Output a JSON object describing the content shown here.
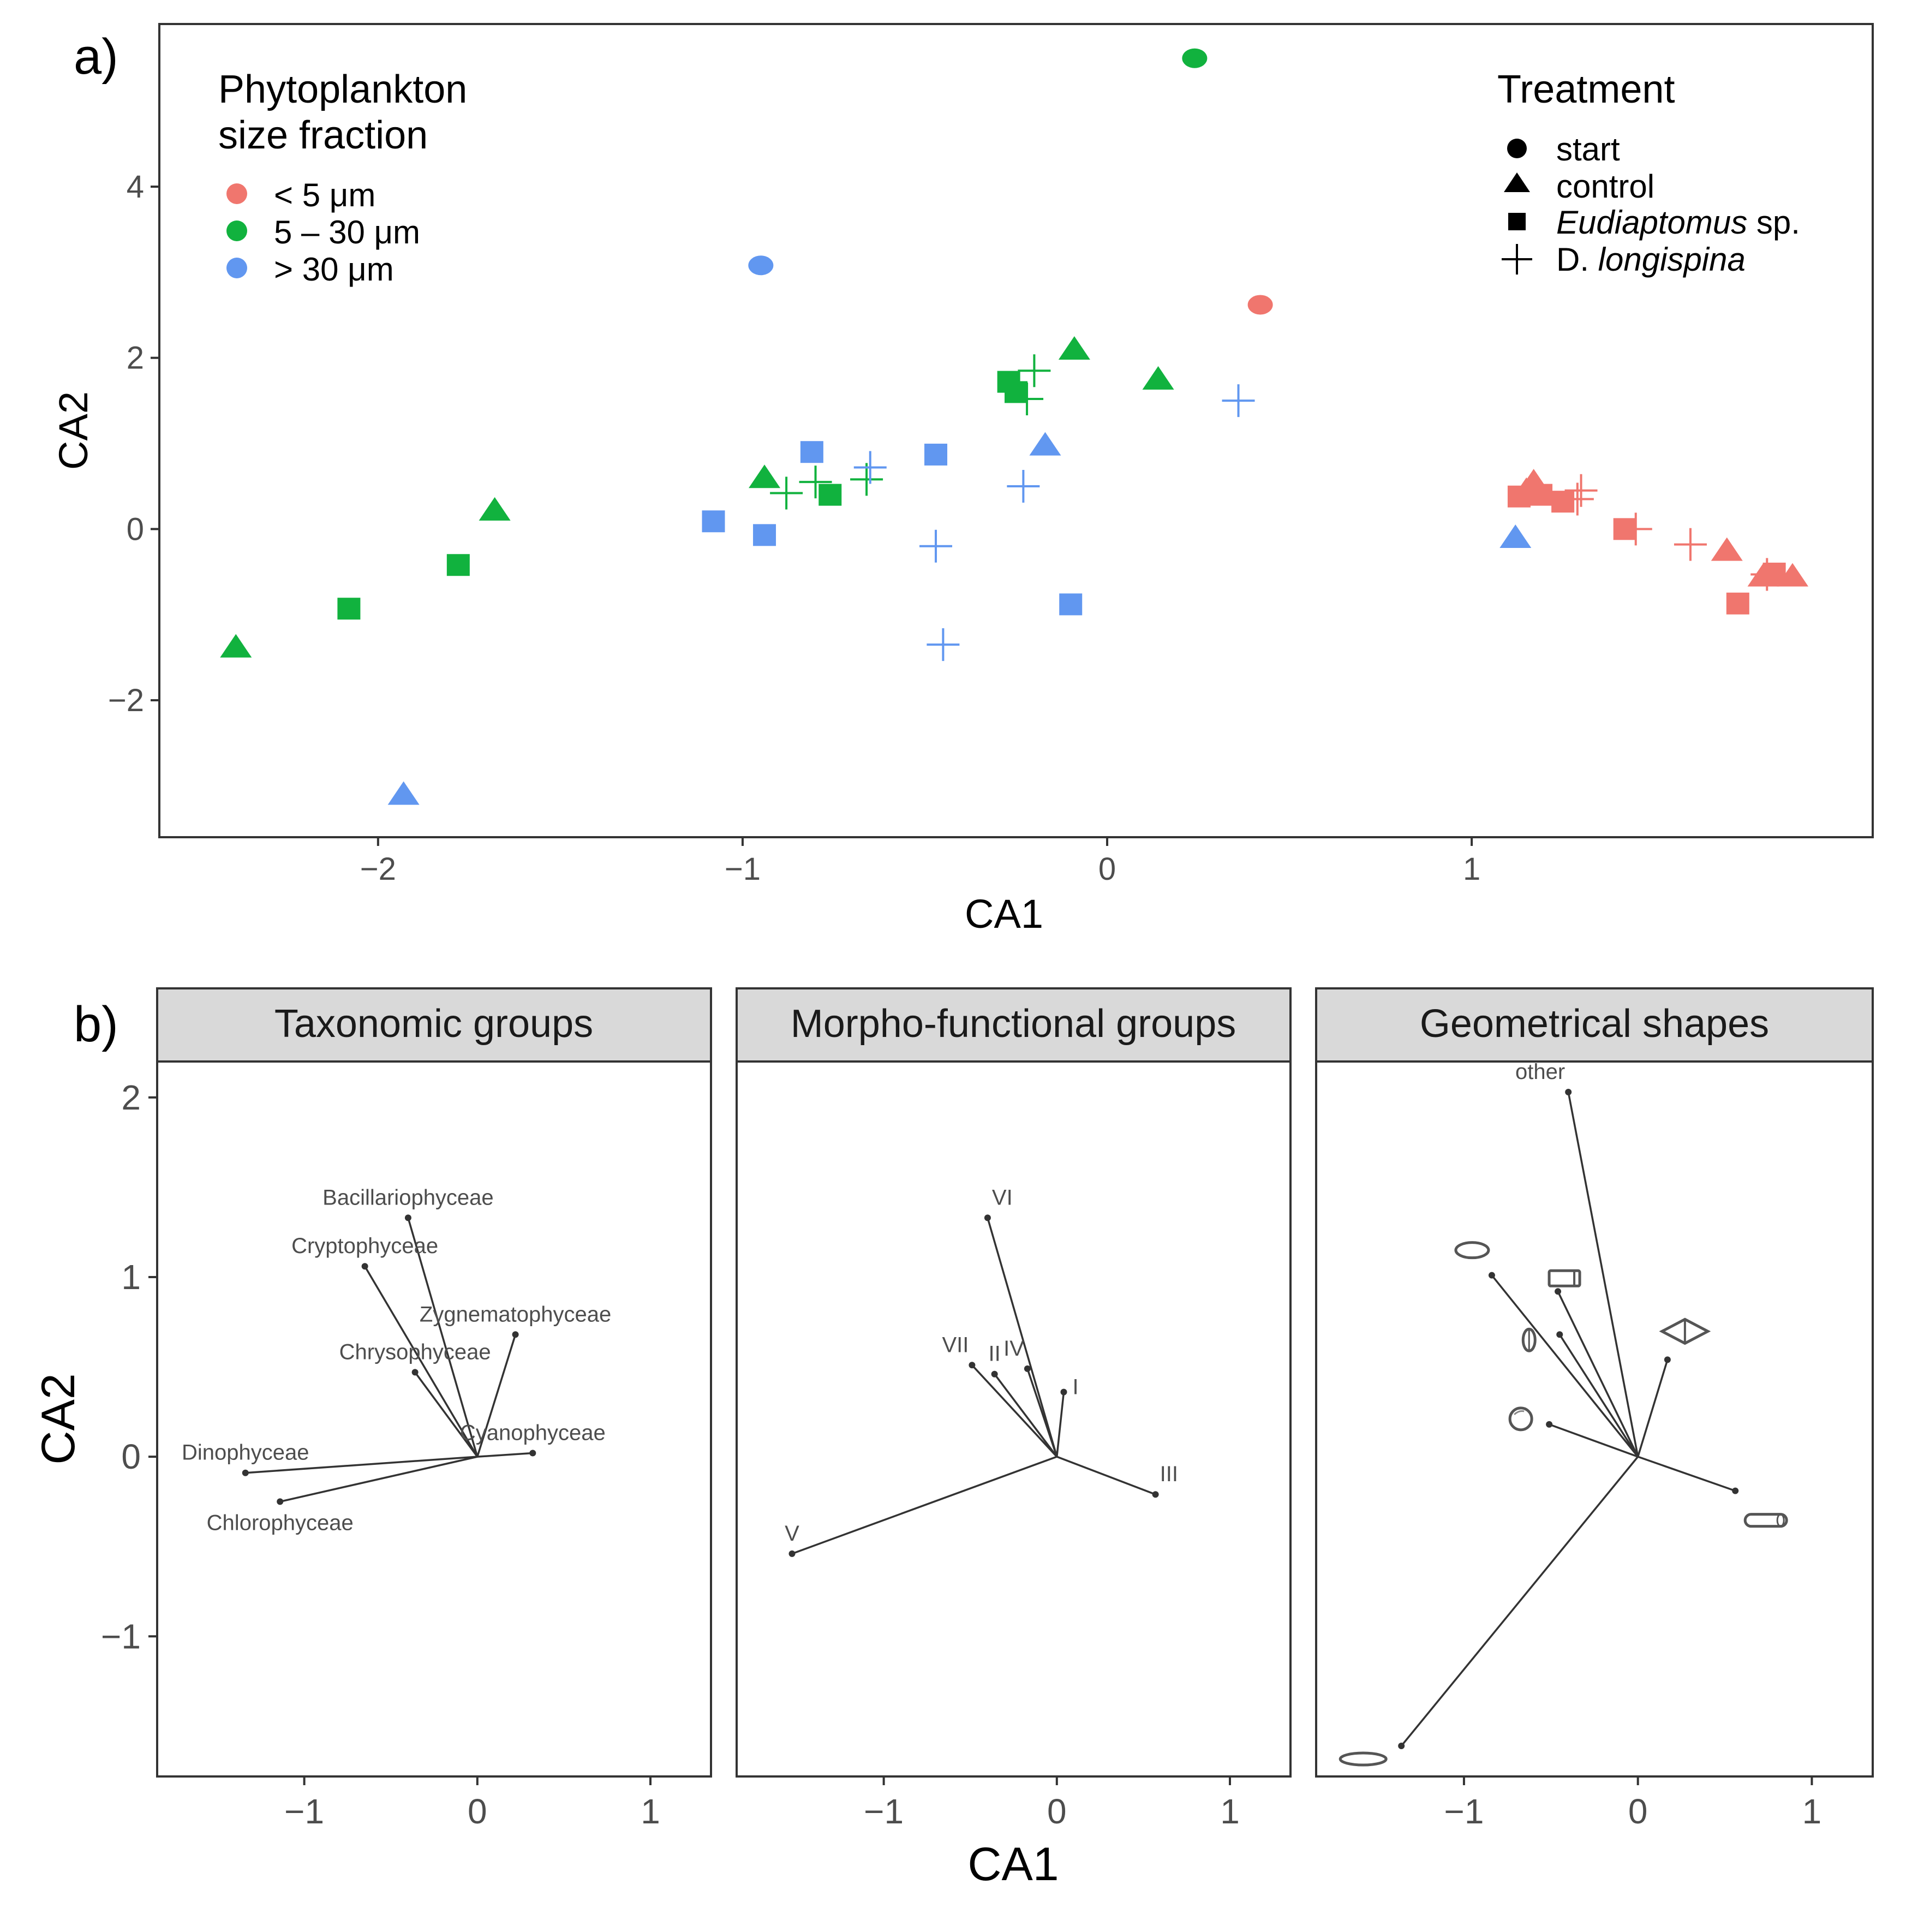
{
  "panel_a": {
    "tag": "a)",
    "chart_data": {
      "type": "scatter",
      "xlabel": "CA1",
      "ylabel": "CA2",
      "xlim": [
        -2.6,
        2.1
      ],
      "ylim": [
        -3.6,
        5.9
      ],
      "xticks": [
        {
          "v": -2,
          "label": "−2"
        },
        {
          "v": -1,
          "label": "−1"
        },
        {
          "v": 0,
          "label": "0"
        },
        {
          "v": 1,
          "label": "1"
        }
      ],
      "yticks": [
        {
          "v": -2,
          "label": "−2"
        },
        {
          "v": 0,
          "label": "0"
        },
        {
          "v": 2,
          "label": "2"
        },
        {
          "v": 4,
          "label": "4"
        }
      ],
      "legend_size": {
        "title_line1": "Phytoplankton",
        "title_line2": "size fraction",
        "items": [
          {
            "key": "small",
            "label": "< 5 μm",
            "color": "#F0766E"
          },
          {
            "key": "medium",
            "label": "5 – 30 μm",
            "color": "#11B23E"
          },
          {
            "key": "large",
            "label": "> 30 μm",
            "color": "#6197F0"
          }
        ]
      },
      "legend_treatment": {
        "title": "Treatment",
        "items": [
          {
            "shape": "circle",
            "label": "start"
          },
          {
            "shape": "triangle",
            "label": "control"
          },
          {
            "shape": "square",
            "label_italic": "Eudiaptomus",
            "label_rest": " sp."
          },
          {
            "shape": "plus",
            "label_plain": "D. ",
            "label_italic": "longispina"
          }
        ]
      },
      "series": [
        {
          "name": "< 5 μm",
          "color": "#F0766E",
          "points": [
            {
              "x": 0.42,
              "y": 2.62,
              "shape": "circle"
            },
            {
              "x": 1.17,
              "y": 0.55,
              "shape": "triangle"
            },
            {
              "x": 1.15,
              "y": 0.45,
              "shape": "triangle"
            },
            {
              "x": 1.7,
              "y": -0.25,
              "shape": "triangle"
            },
            {
              "x": 1.8,
              "y": -0.55,
              "shape": "triangle"
            },
            {
              "x": 1.88,
              "y": -0.55,
              "shape": "triangle"
            },
            {
              "x": 1.13,
              "y": 0.38,
              "shape": "square"
            },
            {
              "x": 1.19,
              "y": 0.4,
              "shape": "square"
            },
            {
              "x": 1.25,
              "y": 0.32,
              "shape": "square"
            },
            {
              "x": 1.42,
              "y": 0.0,
              "shape": "square"
            },
            {
              "x": 1.73,
              "y": -0.87,
              "shape": "square"
            },
            {
              "x": 1.83,
              "y": -0.52,
              "shape": "square"
            },
            {
              "x": 1.3,
              "y": 0.45,
              "shape": "plus"
            },
            {
              "x": 1.29,
              "y": 0.35,
              "shape": "plus"
            },
            {
              "x": 1.45,
              "y": 0.0,
              "shape": "plus"
            },
            {
              "x": 1.6,
              "y": -0.18,
              "shape": "plus"
            },
            {
              "x": 1.81,
              "y": -0.53,
              "shape": "plus"
            }
          ]
        },
        {
          "name": "5 – 30 μm",
          "color": "#11B23E",
          "points": [
            {
              "x": 0.24,
              "y": 5.5,
              "shape": "circle"
            },
            {
              "x": -2.39,
              "y": -1.38,
              "shape": "triangle"
            },
            {
              "x": -1.68,
              "y": 0.22,
              "shape": "triangle"
            },
            {
              "x": -0.94,
              "y": 0.6,
              "shape": "triangle"
            },
            {
              "x": -0.09,
              "y": 2.1,
              "shape": "triangle"
            },
            {
              "x": 0.14,
              "y": 1.75,
              "shape": "triangle"
            },
            {
              "x": -2.08,
              "y": -0.93,
              "shape": "square"
            },
            {
              "x": -1.78,
              "y": -0.42,
              "shape": "square"
            },
            {
              "x": -0.76,
              "y": 0.4,
              "shape": "square"
            },
            {
              "x": -0.27,
              "y": 1.72,
              "shape": "square"
            },
            {
              "x": -0.25,
              "y": 1.6,
              "shape": "square"
            },
            {
              "x": -0.88,
              "y": 0.42,
              "shape": "plus"
            },
            {
              "x": -0.8,
              "y": 0.55,
              "shape": "plus"
            },
            {
              "x": -0.66,
              "y": 0.58,
              "shape": "plus"
            },
            {
              "x": -0.22,
              "y": 1.52,
              "shape": "plus"
            },
            {
              "x": -0.2,
              "y": 1.85,
              "shape": "plus"
            }
          ]
        },
        {
          "name": "> 30 μm",
          "color": "#6197F0",
          "points": [
            {
              "x": -0.95,
              "y": 3.08,
              "shape": "circle"
            },
            {
              "x": -1.93,
              "y": -3.1,
              "shape": "triangle"
            },
            {
              "x": -0.17,
              "y": 0.98,
              "shape": "triangle"
            },
            {
              "x": 1.12,
              "y": -0.1,
              "shape": "triangle"
            },
            {
              "x": -0.81,
              "y": 0.9,
              "shape": "square"
            },
            {
              "x": -1.08,
              "y": 0.09,
              "shape": "square"
            },
            {
              "x": -0.94,
              "y": -0.07,
              "shape": "square"
            },
            {
              "x": -0.47,
              "y": 0.87,
              "shape": "square"
            },
            {
              "x": -0.1,
              "y": -0.88,
              "shape": "square"
            },
            {
              "x": -0.65,
              "y": 0.72,
              "shape": "plus"
            },
            {
              "x": -0.23,
              "y": 0.5,
              "shape": "plus"
            },
            {
              "x": -0.47,
              "y": -0.2,
              "shape": "plus"
            },
            {
              "x": -0.45,
              "y": -1.35,
              "shape": "plus"
            },
            {
              "x": 0.36,
              "y": 1.5,
              "shape": "plus"
            }
          ]
        }
      ]
    }
  },
  "panel_b": {
    "tag": "b)",
    "xlabel": "CA1",
    "ylabel": "CA2",
    "xlim": [
      -1.85,
      1.35
    ],
    "ylim": [
      -1.78,
      2.2
    ],
    "xticks": [
      {
        "v": -1,
        "label": "−1"
      },
      {
        "v": 0,
        "label": "0"
      },
      {
        "v": 1,
        "label": "1"
      }
    ],
    "yticks": [
      {
        "v": -1,
        "label": "−1"
      },
      {
        "v": 0,
        "label": "0"
      },
      {
        "v": 1,
        "label": "1"
      },
      {
        "v": 2,
        "label": "2"
      }
    ],
    "chart_data": [
      {
        "type": "biplot",
        "title": "Taxonomic groups",
        "vectors": [
          {
            "label": "Bacillariophyceae",
            "x": -0.4,
            "y": 1.33,
            "anchor": "middle",
            "side": "above"
          },
          {
            "label": "Cryptophyceae",
            "x": -0.65,
            "y": 1.06,
            "anchor": "middle",
            "side": "above"
          },
          {
            "label": "Zygnematophyceae",
            "x": 0.22,
            "y": 0.68,
            "anchor": "middle",
            "side": "above"
          },
          {
            "label": "Chrysophyceae",
            "x": -0.36,
            "y": 0.47,
            "anchor": "middle",
            "side": "above"
          },
          {
            "label": "Cyanophyceae",
            "x": 0.32,
            "y": 0.02,
            "anchor": "middle",
            "side": "above"
          },
          {
            "label": "Dinophyceae",
            "x": -1.34,
            "y": -0.09,
            "anchor": "middle",
            "side": "above"
          },
          {
            "label": "Chlorophyceae",
            "x": -1.14,
            "y": -0.25,
            "anchor": "middle",
            "side": "below"
          }
        ]
      },
      {
        "type": "biplot",
        "title": "Morpho-functional groups",
        "vectors": [
          {
            "label": "VI",
            "x": -0.4,
            "y": 1.33,
            "anchor": "start",
            "side": "above"
          },
          {
            "label": "VII",
            "x": -0.49,
            "y": 0.51,
            "anchor": "end",
            "side": "above"
          },
          {
            "label": "II",
            "x": -0.36,
            "y": 0.46,
            "anchor": "middle",
            "side": "above"
          },
          {
            "label": "IV",
            "x": -0.17,
            "y": 0.49,
            "anchor": "end",
            "side": "above"
          },
          {
            "label": "I",
            "x": 0.04,
            "y": 0.36,
            "anchor": "start",
            "side": "right"
          },
          {
            "label": "III",
            "x": 0.57,
            "y": -0.21,
            "anchor": "start",
            "side": "above"
          },
          {
            "label": "V",
            "x": -1.53,
            "y": -0.54,
            "anchor": "middle",
            "side": "above"
          }
        ]
      },
      {
        "type": "biplot",
        "title": "Geometrical shapes",
        "vectors": [
          {
            "label": "other",
            "x": -0.4,
            "y": 2.03,
            "anchor": "end",
            "side": "above",
            "glyph": "text"
          },
          {
            "label": "",
            "x": -0.84,
            "y": 1.01,
            "glyph": "flat-ellipse"
          },
          {
            "label": "",
            "x": -0.46,
            "y": 0.92,
            "glyph": "cylinder"
          },
          {
            "label": "",
            "x": -0.45,
            "y": 0.68,
            "glyph": "teardrop"
          },
          {
            "label": "",
            "x": 0.17,
            "y": 0.54,
            "glyph": "double-cone"
          },
          {
            "label": "",
            "x": -0.51,
            "y": 0.18,
            "glyph": "sphere"
          },
          {
            "label": "",
            "x": 0.56,
            "y": -0.19,
            "glyph": "capsule"
          },
          {
            "label": "",
            "x": -1.36,
            "y": -1.61,
            "glyph": "long-ellipse"
          }
        ]
      }
    ]
  }
}
